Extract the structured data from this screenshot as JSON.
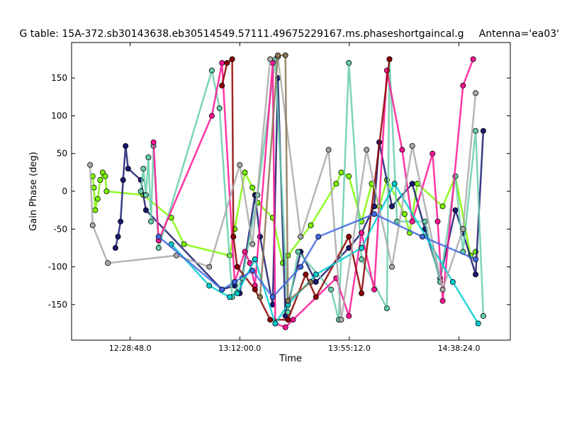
{
  "chart_data": {
    "type": "scatter",
    "title": "G table: 15A-372.sb30143638.eb30514549.57111.49675229167.ms.phaseshortgaincal.g",
    "title_right": "Antenna='ea03'",
    "xlabel": "Time",
    "ylabel": "Gain Phase (deg)",
    "x_ticks": [
      "12:28:48.0",
      "13:12:00.0",
      "13:55:12.0",
      "14:38:24.0"
    ],
    "xlim": [
      "12:05:42",
      "14:58:39"
    ],
    "ylim": [
      -197,
      197
    ],
    "y_ticks": [
      150,
      100,
      50,
      0,
      -50,
      -100,
      -150
    ],
    "grid": false,
    "legend": "none",
    "markers": "filled circles with black edges, connected by lines per series",
    "series": [
      {
        "color": "#7CFC00",
        "points": [
          [
            "12:14:00",
            20
          ],
          [
            "12:14:30",
            5
          ],
          [
            "12:15:00",
            -25
          ],
          [
            "12:16:00",
            -10
          ],
          [
            "12:17:00",
            15
          ],
          [
            "12:18:00",
            25
          ],
          [
            "12:19:00",
            20
          ],
          [
            "12:19:30",
            0
          ],
          [
            "12:34:00",
            -5
          ],
          [
            "12:45:00",
            -35
          ],
          [
            "12:50:00",
            -70
          ],
          [
            "13:08:00",
            -85
          ],
          [
            "13:10:00",
            -50
          ],
          [
            "13:14:00",
            25
          ],
          [
            "13:17:00",
            5
          ],
          [
            "13:19:00",
            -15
          ],
          [
            "13:25:00",
            -35
          ],
          [
            "13:29:00",
            -95
          ],
          [
            "13:31:00",
            -85
          ],
          [
            "13:40:00",
            -45
          ],
          [
            "13:50:00",
            10
          ],
          [
            "13:52:00",
            25
          ],
          [
            "13:55:00",
            20
          ],
          [
            "14:00:00",
            -40
          ],
          [
            "14:04:00",
            10
          ],
          [
            "14:07:00",
            -20
          ],
          [
            "14:10:00",
            15
          ],
          [
            "14:17:00",
            -30
          ],
          [
            "14:19:00",
            -55
          ],
          [
            "14:22:00",
            10
          ],
          [
            "14:32:00",
            -20
          ],
          [
            "14:37:00",
            20
          ],
          [
            "14:43:00",
            -85
          ],
          [
            "14:45:00",
            -80
          ]
        ]
      },
      {
        "color": "#191970",
        "points": [
          [
            "12:23:00",
            -75
          ],
          [
            "12:24:00",
            -60
          ],
          [
            "12:25:00",
            -40
          ],
          [
            "12:26:00",
            15
          ],
          [
            "12:27:00",
            60
          ],
          [
            "12:28:00",
            30
          ],
          [
            "12:33:00",
            15
          ],
          [
            "12:35:00",
            -25
          ],
          [
            "13:05:00",
            -130
          ],
          [
            "13:10:00",
            -125
          ],
          [
            "13:12:00",
            -135
          ],
          [
            "13:18:00",
            -5
          ],
          [
            "13:20:00",
            -60
          ],
          [
            "13:25:00",
            -150
          ],
          [
            "13:27:00",
            150
          ],
          [
            "13:30:00",
            -165
          ],
          [
            "13:36:00",
            -80
          ],
          [
            "13:42:00",
            -120
          ],
          [
            "13:55:00",
            -75
          ],
          [
            "14:00:00",
            -55
          ],
          [
            "14:05:00",
            -20
          ],
          [
            "14:07:00",
            65
          ],
          [
            "14:12:00",
            -20
          ],
          [
            "14:20:00",
            10
          ],
          [
            "14:25:00",
            -50
          ],
          [
            "14:31:00",
            -115
          ],
          [
            "14:37:00",
            -25
          ],
          [
            "14:40:00",
            -55
          ],
          [
            "14:45:00",
            -110
          ],
          [
            "14:48:00",
            80
          ]
        ]
      },
      {
        "color": "#66CDAA",
        "points": [
          [
            "12:33:00",
            0
          ],
          [
            "12:34:00",
            30
          ],
          [
            "12:35:00",
            -5
          ],
          [
            "12:36:00",
            45
          ],
          [
            "12:37:00",
            -40
          ],
          [
            "12:38:00",
            60
          ],
          [
            "12:40:00",
            -75
          ],
          [
            "13:01:00",
            160
          ],
          [
            "13:04:00",
            110
          ],
          [
            "13:09:00",
            -140
          ],
          [
            "13:13:00",
            -115
          ],
          [
            "13:19:00",
            -5
          ],
          [
            "13:26:00",
            175
          ],
          [
            "13:31:00",
            -160
          ],
          [
            "13:35:00",
            -80
          ],
          [
            "13:48:00",
            -130
          ],
          [
            "13:51:00",
            -170
          ],
          [
            "13:55:00",
            170
          ],
          [
            "14:00:00",
            -90
          ],
          [
            "14:10:00",
            -155
          ],
          [
            "14:11:00",
            175
          ],
          [
            "14:14:00",
            -40
          ],
          [
            "14:25:00",
            -40
          ],
          [
            "14:31:00",
            -120
          ],
          [
            "14:37:00",
            20
          ],
          [
            "14:40:00",
            -80
          ],
          [
            "14:45:00",
            80
          ],
          [
            "14:48:00",
            -165
          ]
        ]
      },
      {
        "color": "#FF1493",
        "points": [
          [
            "12:38:00",
            65
          ],
          [
            "12:40:00",
            -65
          ],
          [
            "13:01:00",
            100
          ],
          [
            "13:05:00",
            170
          ],
          [
            "13:10:00",
            -120
          ],
          [
            "13:14:00",
            -80
          ],
          [
            "13:16:00",
            -95
          ],
          [
            "13:18:00",
            -125
          ],
          [
            "13:25:00",
            170
          ],
          [
            "13:26:00",
            -175
          ],
          [
            "13:30:00",
            -180
          ],
          [
            "13:33:00",
            -170
          ],
          [
            "13:50:00",
            -115
          ],
          [
            "13:55:00",
            -165
          ],
          [
            "14:00:00",
            -55
          ],
          [
            "14:05:00",
            -130
          ],
          [
            "14:10:00",
            160
          ],
          [
            "14:16:00",
            55
          ],
          [
            "14:20:00",
            -40
          ],
          [
            "14:28:00",
            50
          ],
          [
            "14:30:00",
            -40
          ],
          [
            "14:32:00",
            -145
          ],
          [
            "14:40:00",
            140
          ],
          [
            "14:44:00",
            175
          ]
        ]
      },
      {
        "color": "#8B0000",
        "points": [
          [
            "13:05:00",
            140
          ],
          [
            "13:07:00",
            170
          ],
          [
            "13:09:00",
            175
          ],
          [
            "13:09:30",
            -60
          ],
          [
            "13:11:00",
            -100
          ],
          [
            "13:18:00",
            -130
          ],
          [
            "13:24:00",
            -170
          ],
          [
            "13:31:00",
            -170
          ],
          [
            "13:38:00",
            -110
          ],
          [
            "13:42:00",
            -140
          ],
          [
            "13:55:00",
            -60
          ],
          [
            "14:00:00",
            -135
          ],
          [
            "14:11:00",
            175
          ]
        ]
      },
      {
        "color": "#00CED1",
        "points": [
          [
            "12:45:00",
            -70
          ],
          [
            "13:00:00",
            -125
          ],
          [
            "13:08:00",
            -140
          ],
          [
            "13:11:00",
            -135
          ],
          [
            "13:18:00",
            -90
          ],
          [
            "13:26:00",
            -175
          ],
          [
            "13:31:00",
            -150
          ],
          [
            "13:42:00",
            -110
          ],
          [
            "14:00:00",
            -75
          ],
          [
            "14:13:00",
            10
          ],
          [
            "14:36:00",
            -120
          ],
          [
            "14:46:00",
            -175
          ]
        ]
      },
      {
        "color": "#A9A9A9",
        "points": [
          [
            "12:13:00",
            35
          ],
          [
            "12:14:00",
            -45
          ],
          [
            "12:20:00",
            -95
          ],
          [
            "12:47:00",
            -85
          ],
          [
            "13:00:00",
            -100
          ],
          [
            "13:12:00",
            35
          ],
          [
            "13:17:00",
            -70
          ],
          [
            "13:24:00",
            175
          ],
          [
            "13:27:00",
            178
          ],
          [
            "13:36:00",
            -60
          ],
          [
            "13:47:00",
            55
          ],
          [
            "13:52:00",
            -170
          ],
          [
            "14:02:00",
            55
          ],
          [
            "14:12:00",
            -100
          ],
          [
            "14:20:00",
            60
          ],
          [
            "14:32:00",
            -130
          ],
          [
            "14:40:00",
            -50
          ],
          [
            "14:45:00",
            130
          ]
        ]
      },
      {
        "color": "#8B7355",
        "points": [
          [
            "13:20:00",
            -140
          ],
          [
            "13:27:00",
            180
          ],
          [
            "13:30:00",
            180
          ],
          [
            "13:31:00",
            -145
          ],
          [
            "13:40:00",
            -120
          ]
        ]
      },
      {
        "color": "#4169E1",
        "points": [
          [
            "12:40:00",
            -60
          ],
          [
            "13:05:00",
            -130
          ],
          [
            "13:10:00",
            -120
          ],
          [
            "13:17:00",
            -105
          ],
          [
            "13:25:00",
            -140
          ],
          [
            "13:36:00",
            -100
          ],
          [
            "13:43:00",
            -60
          ],
          [
            "14:05:00",
            -30
          ],
          [
            "14:24:00",
            -60
          ],
          [
            "14:45:00",
            -90
          ]
        ]
      }
    ]
  }
}
